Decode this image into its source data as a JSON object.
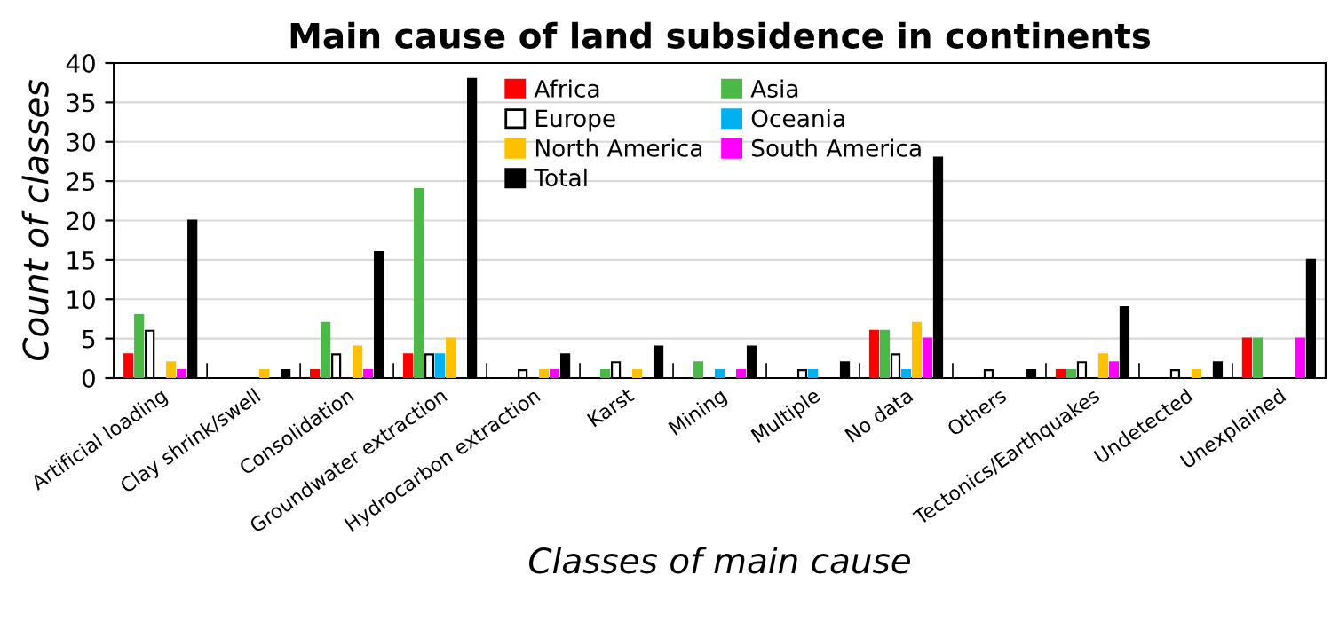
{
  "chart_data": {
    "type": "bar",
    "title": "Main cause of land subsidence in continents",
    "xlabel": "Classes of main cause",
    "ylabel": "Count of classes",
    "categories": [
      "Artificial loading",
      "Clay shrink/swell",
      "Consolidation",
      "Groundwater extraction",
      "Hydrocarbon extraction",
      "Karst",
      "Mining",
      "Multiple",
      "No data",
      "Others",
      "Tectonics/Earthquakes",
      "Undetected",
      "Unexplained"
    ],
    "series": [
      {
        "name": "Africa",
        "color": "#ff0000",
        "values": [
          3,
          0,
          1,
          3,
          0,
          0,
          0,
          0,
          6,
          0,
          1,
          0,
          5
        ]
      },
      {
        "name": "Asia",
        "color": "#4cb848",
        "values": [
          8,
          0,
          7,
          24,
          0,
          1,
          2,
          0,
          6,
          0,
          1,
          0,
          5
        ]
      },
      {
        "name": "Europe",
        "color": "#ffffff",
        "values": [
          6,
          0,
          3,
          3,
          1,
          2,
          0,
          1,
          3,
          1,
          2,
          1,
          0
        ]
      },
      {
        "name": "Oceania",
        "color": "#00b0f0",
        "values": [
          0,
          0,
          0,
          3,
          0,
          0,
          1,
          1,
          1,
          0,
          0,
          0,
          0
        ]
      },
      {
        "name": "North America",
        "color": "#ffc000",
        "values": [
          2,
          1,
          4,
          5,
          1,
          1,
          0,
          0,
          7,
          0,
          3,
          1,
          0
        ]
      },
      {
        "name": "South America",
        "color": "#ff00ff",
        "values": [
          1,
          0,
          1,
          0,
          1,
          0,
          1,
          0,
          5,
          0,
          2,
          0,
          5
        ]
      },
      {
        "name": "Total",
        "color": "#000000",
        "values": [
          20,
          1,
          16,
          38,
          3,
          4,
          4,
          2,
          28,
          1,
          9,
          2,
          15
        ]
      }
    ],
    "ylim": [
      0,
      40
    ],
    "yticks": [
      0,
      5,
      10,
      15,
      20,
      25,
      30,
      35,
      40
    ],
    "grid": "y",
    "legend": "top right"
  }
}
